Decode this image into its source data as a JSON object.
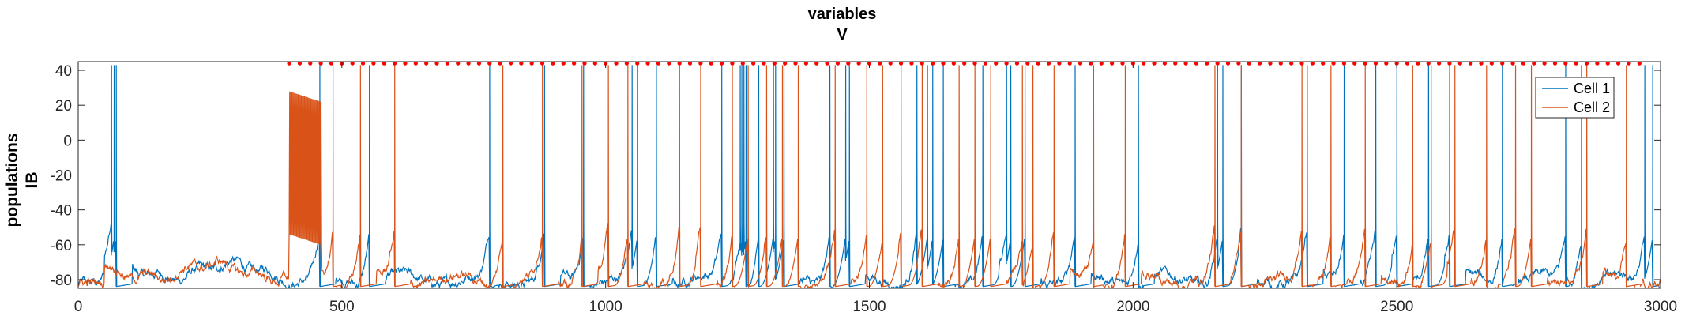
{
  "chart_data": {
    "type": "line",
    "title": [
      "variables",
      "V"
    ],
    "ylabel": [
      "populations",
      "IB"
    ],
    "xlabel": "",
    "xlim": [
      0,
      3000
    ],
    "ylim": [
      -85,
      45
    ],
    "x_ticks": [
      0,
      500,
      1000,
      1500,
      2000,
      2500,
      3000
    ],
    "y_ticks": [
      40,
      20,
      0,
      -20,
      -40,
      -60,
      -80
    ],
    "grid": false,
    "legend": {
      "placement": "top-right"
    },
    "series": [
      {
        "name": "Cell 1",
        "color": "#0072BD",
        "spike_peak": 43,
        "spike_times": [
          63,
          68,
          72,
          458,
          552,
          780,
          884,
          958,
          1050,
          1060,
          1096,
          1220,
          1255,
          1258,
          1262,
          1266,
          1290,
          1318,
          1322,
          1338,
          1425,
          1455,
          1462,
          1590,
          1610,
          1620,
          1640,
          1715,
          1760,
          1768,
          1795,
          1890,
          2010,
          2160,
          2170,
          2205,
          2330,
          2400,
          2460,
          2500,
          2560,
          2600,
          2700,
          2820,
          2850,
          2970,
          2985
        ]
      },
      {
        "name": "Cell 2",
        "color": "#D95319",
        "spike_peak": 43,
        "burst_start": 400,
        "burst_end": 460,
        "spike_times": [
          483,
          535,
          600,
          805,
          880,
          955,
          1005,
          1042,
          1140,
          1180,
          1240,
          1270,
          1305,
          1335,
          1365,
          1435,
          1495,
          1525,
          1560,
          1600,
          1670,
          1700,
          1730,
          1790,
          1810,
          1850,
          1925,
          1985,
          2155,
          2205,
          2320,
          2375,
          2440,
          2530,
          2565,
          2610,
          2670,
          2725,
          2755,
          2860,
          2935
        ]
      }
    ],
    "markers": {
      "color": "#FF0000",
      "y": 44,
      "x_start": 400,
      "x_end": 2975,
      "step": 20
    }
  }
}
